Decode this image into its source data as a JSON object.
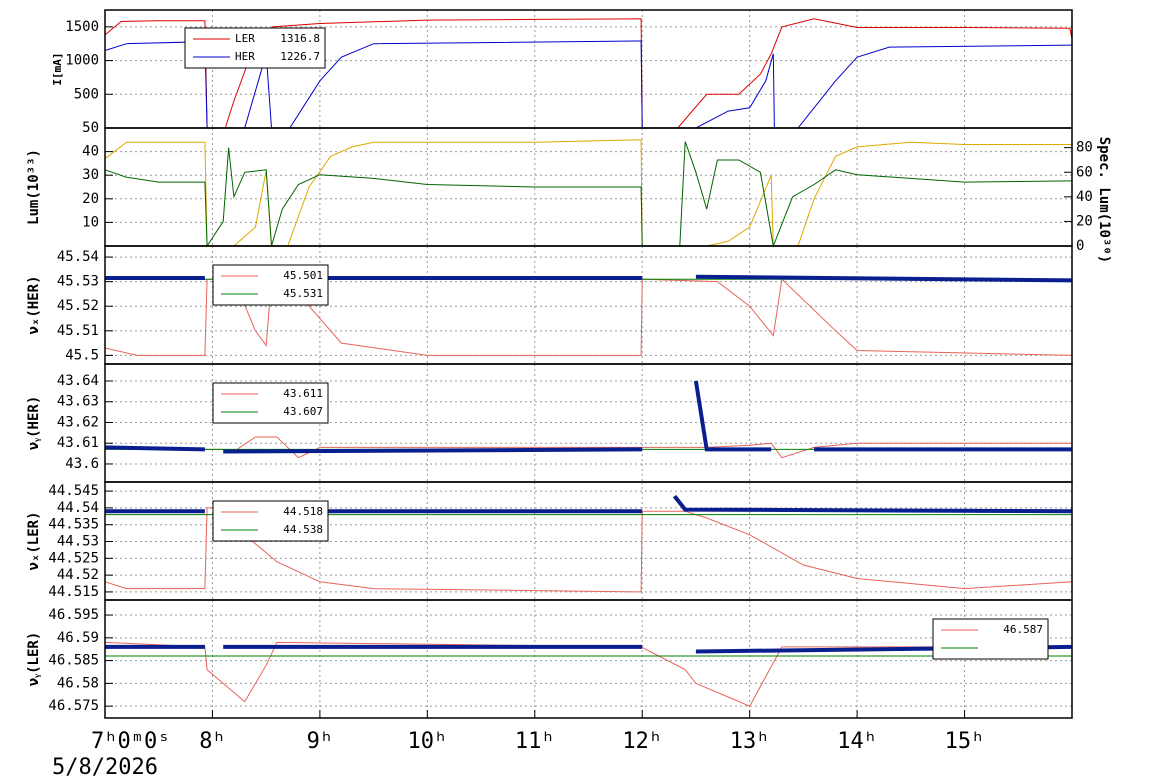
{
  "chart_data": [
    {
      "type": "line",
      "ylabel": "I[mA]",
      "ylim": [
        0,
        1750
      ],
      "yticks": [
        500,
        1000,
        1500
      ],
      "grid": true,
      "legend": "upper left",
      "series": [
        {
          "name": "LER",
          "label": "1316.8",
          "color": "#e00000",
          "width": 1,
          "x": [
            7.0,
            7.15,
            7.5,
            7.93,
            7.95,
            8.12,
            8.2,
            8.35,
            8.5,
            8.53,
            8.56,
            9.0,
            10.0,
            11.0,
            11.99,
            12.0,
            12.33,
            12.6,
            12.9,
            13.1,
            13.2,
            13.3,
            13.6,
            14.0,
            15.0,
            15.98,
            16.0
          ],
          "values": [
            1380,
            1580,
            1590,
            1590,
            0,
            0,
            400,
            1050,
            1000,
            1380,
            1500,
            1550,
            1600,
            1610,
            1620,
            0,
            0,
            500,
            500,
            800,
            1100,
            1500,
            1620,
            1490,
            1490,
            1480,
            1320
          ]
        },
        {
          "name": "HER",
          "label": "1226.7",
          "color": "#0000cc",
          "width": 1,
          "x": [
            7.0,
            7.2,
            7.93,
            7.95,
            8.3,
            8.5,
            8.55,
            8.72,
            9.0,
            9.2,
            9.5,
            11.99,
            12.0,
            12.5,
            12.8,
            13.0,
            13.15,
            13.22,
            13.23,
            13.45,
            13.8,
            14.0,
            14.3,
            16.0
          ],
          "values": [
            1150,
            1250,
            1280,
            0,
            0,
            1100,
            0,
            0,
            700,
            1050,
            1250,
            1290,
            0,
            0,
            250,
            300,
            700,
            1100,
            0,
            0,
            700,
            1050,
            1200,
            1230
          ]
        }
      ]
    },
    {
      "type": "line",
      "ylabel": "Lum(10³³)",
      "y2label": "Spec. Lum(10³⁰)",
      "ylim": [
        0,
        50
      ],
      "yticks": [
        10,
        20,
        30,
        40,
        50
      ],
      "y2lim": [
        0,
        96
      ],
      "y2ticks": [
        0,
        20,
        40,
        60,
        80
      ],
      "grid": true,
      "series": [
        {
          "color": "#e0a800",
          "width": 1,
          "x": [
            7.0,
            7.2,
            7.5,
            7.93,
            7.95,
            8.2,
            8.4,
            8.5,
            8.55,
            8.7,
            8.9,
            9.1,
            9.3,
            9.5,
            10.0,
            11.0,
            11.99,
            12.0,
            12.6,
            12.8,
            13.0,
            13.2,
            13.22,
            13.45,
            13.6,
            13.8,
            14.0,
            14.5,
            15.0,
            16.0
          ],
          "values": [
            37,
            44,
            44,
            44,
            0,
            0,
            8,
            32,
            0,
            0,
            25,
            38,
            42,
            44,
            44,
            44,
            45,
            0,
            0,
            2,
            8,
            30,
            0,
            0,
            20,
            38,
            42,
            44,
            43,
            43
          ]
        },
        {
          "color": "#006400",
          "width": 1,
          "axis": "y2",
          "x": [
            7.0,
            7.2,
            7.5,
            7.93,
            7.95,
            8.1,
            8.15,
            8.2,
            8.3,
            8.5,
            8.55,
            8.65,
            8.8,
            9.0,
            9.5,
            10.0,
            11.0,
            11.99,
            12.0,
            12.35,
            12.4,
            12.5,
            12.6,
            12.7,
            12.9,
            13.1,
            13.22,
            13.4,
            13.6,
            13.8,
            14.0,
            15.0,
            16.0
          ],
          "values": [
            62,
            56,
            52,
            52,
            0,
            20,
            80,
            40,
            60,
            62,
            0,
            30,
            50,
            58,
            55,
            50,
            48,
            48,
            0,
            0,
            85,
            60,
            30,
            70,
            70,
            60,
            0,
            40,
            50,
            62,
            58,
            52,
            53
          ]
        }
      ]
    },
    {
      "type": "line",
      "ylabel": "νₓ(HER)",
      "ylim": [
        45.4965,
        45.5445
      ],
      "yticks": [
        45.5,
        45.51,
        45.52,
        45.53,
        45.54
      ],
      "grid": true,
      "legend": "upper left",
      "series": [
        {
          "label": "45.501",
          "color": "#e8635a",
          "width": 1,
          "x": [
            7.0,
            7.3,
            7.93,
            7.95,
            8.2,
            8.4,
            8.5,
            8.55,
            8.9,
            9.2,
            10.0,
            11.99,
            12.0,
            12.7,
            13.0,
            13.22,
            13.3,
            13.8,
            14.0,
            16.0
          ],
          "values": [
            45.503,
            45.5,
            45.5,
            45.531,
            45.531,
            45.51,
            45.504,
            45.531,
            45.52,
            45.505,
            45.5,
            45.5,
            45.531,
            45.53,
            45.52,
            45.508,
            45.531,
            45.51,
            45.502,
            45.5
          ]
        },
        {
          "label": "45.531",
          "color": "#008000",
          "width": 1,
          "x": [
            7.0,
            16.0
          ],
          "values": [
            45.531,
            45.531
          ]
        },
        {
          "color": "#0a1f8f",
          "width": 4,
          "x": [
            7.0,
            7.93,
            7.95,
            8.1,
            12.0,
            12.01,
            12.5,
            16.0
          ],
          "values": [
            45.5315,
            45.5315,
            null,
            45.5315,
            45.5315,
            null,
            45.532,
            45.5305
          ]
        }
      ]
    },
    {
      "type": "line",
      "ylabel": "νᵧ(HER)",
      "ylim": [
        43.5913,
        43.6482
      ],
      "yticks": [
        43.6,
        43.61,
        43.62,
        43.63,
        43.64
      ],
      "grid": true,
      "legend": "upper left",
      "series": [
        {
          "label": "43.611",
          "color": "#e8635a",
          "width": 1,
          "x": [
            7.0,
            7.93,
            8.1,
            8.2,
            8.4,
            8.6,
            8.8,
            9.0,
            12.0,
            12.6,
            13.0,
            13.2,
            13.3,
            13.6,
            14.0,
            16.0
          ],
          "values": [
            43.608,
            43.607,
            43.607,
            43.606,
            43.613,
            43.613,
            43.603,
            43.608,
            43.608,
            43.608,
            43.609,
            43.61,
            43.603,
            43.608,
            43.61,
            43.61
          ]
        },
        {
          "label": "43.607",
          "color": "#008000",
          "width": 1,
          "x": [
            7.0,
            16.0
          ],
          "values": [
            43.607,
            43.607
          ]
        },
        {
          "color": "#0a1f8f",
          "width": 4,
          "x": [
            7.0,
            7.93,
            7.95,
            8.1,
            12.0,
            12.01,
            12.5,
            12.6,
            13.2,
            13.25,
            13.6,
            16.0
          ],
          "values": [
            43.608,
            43.607,
            null,
            43.606,
            43.607,
            null,
            43.64,
            43.607,
            43.607,
            null,
            43.607,
            43.607
          ]
        }
      ]
    },
    {
      "type": "line",
      "ylabel": "νₓ(LER)",
      "ylim": [
        44.5126,
        44.5477
      ],
      "yticks": [
        44.515,
        44.52,
        44.525,
        44.53,
        44.535,
        44.54,
        44.545
      ],
      "grid": true,
      "legend": "upper left",
      "series": [
        {
          "label": "44.518",
          "color": "#e8635a",
          "width": 1,
          "x": [
            7.0,
            7.2,
            7.93,
            7.95,
            8.1,
            8.3,
            8.6,
            9.0,
            9.5,
            11.99,
            12.0,
            12.4,
            12.6,
            13.0,
            13.5,
            14.0,
            15.0,
            16.0
          ],
          "values": [
            44.518,
            44.516,
            44.516,
            44.54,
            44.54,
            44.532,
            44.524,
            44.518,
            44.516,
            44.515,
            44.539,
            44.539,
            44.537,
            44.532,
            44.523,
            44.519,
            44.516,
            44.518
          ]
        },
        {
          "label": "44.538",
          "color": "#008000",
          "width": 1,
          "x": [
            7.0,
            16.0
          ],
          "values": [
            44.538,
            44.538
          ]
        },
        {
          "color": "#0a1f8f",
          "width": 4,
          "x": [
            7.0,
            7.93,
            7.95,
            8.1,
            12.0,
            12.01,
            12.3,
            12.4,
            16.0
          ],
          "values": [
            44.539,
            44.539,
            null,
            44.539,
            44.539,
            null,
            44.5435,
            44.5395,
            44.539
          ]
        }
      ]
    },
    {
      "type": "line",
      "ylabel": "νᵧ(LER)",
      "ylim": [
        46.5724,
        46.5983
      ],
      "yticks": [
        46.575,
        46.58,
        46.585,
        46.59,
        46.595
      ],
      "grid": true,
      "legend": "upper right",
      "xlim": [
        7,
        16
      ],
      "xticks": [
        {
          "value": 7,
          "label": "7ʰ0ᵐ0ˢ"
        },
        {
          "value": 8,
          "label": "8ʰ"
        },
        {
          "value": 9,
          "label": "9ʰ"
        },
        {
          "value": 10,
          "label": "10ʰ"
        },
        {
          "value": 11,
          "label": "11ʰ"
        },
        {
          "value": 12,
          "label": "12ʰ"
        },
        {
          "value": 13,
          "label": "13ʰ"
        },
        {
          "value": 14,
          "label": "14ʰ"
        },
        {
          "value": 15,
          "label": "15ʰ"
        }
      ],
      "xlabel": "5/8/2026",
      "series": [
        {
          "label": "46.587",
          "color": "#e8635a",
          "width": 1,
          "x": [
            7.0,
            7.93,
            7.95,
            8.1,
            8.3,
            8.5,
            8.6,
            11.99,
            12.4,
            12.5,
            12.8,
            13.0,
            13.3,
            14.0,
            15.0,
            16.0
          ],
          "values": [
            46.589,
            46.588,
            46.583,
            46.58,
            46.576,
            46.584,
            46.589,
            46.588,
            46.583,
            46.58,
            46.577,
            46.575,
            46.588,
            46.588,
            46.588,
            46.588
          ]
        },
        {
          "color": "#008000",
          "width": 1,
          "x": [
            7.0,
            16.0
          ],
          "values": [
            46.586,
            46.586
          ]
        },
        {
          "color": "#0a1f8f",
          "width": 4,
          "x": [
            7.0,
            7.93,
            7.95,
            8.1,
            12.0,
            12.01,
            12.5,
            16.0
          ],
          "values": [
            46.588,
            46.588,
            null,
            46.588,
            46.588,
            null,
            46.587,
            46.588
          ]
        }
      ]
    }
  ]
}
